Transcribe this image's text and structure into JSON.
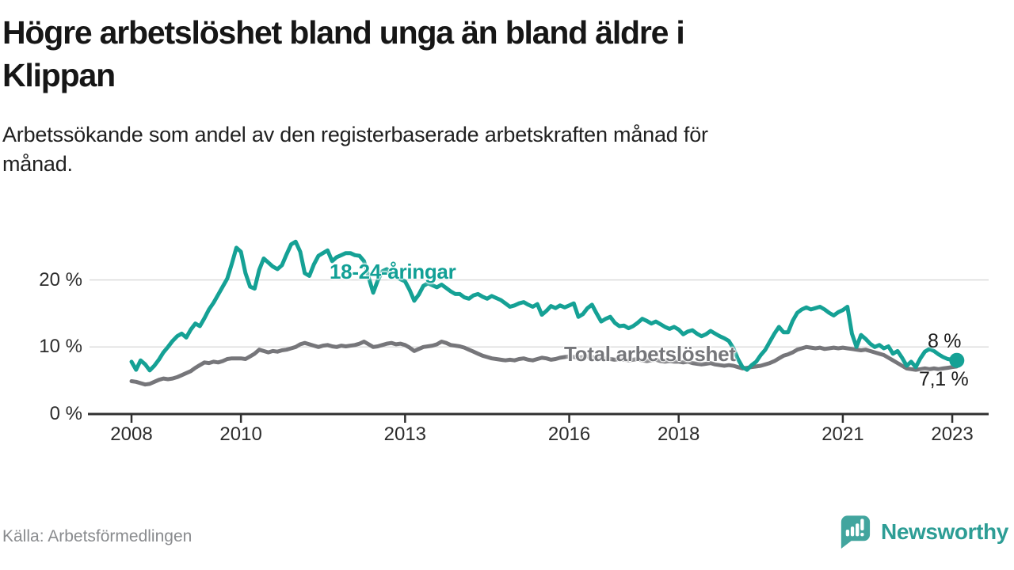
{
  "header": {
    "title": "Högre arbetslöshet bland unga än bland äldre i\nKlippan",
    "subtitle": "Arbetssökande som andel av den registerbaserade arbetskraften månad för\nmånad."
  },
  "chart_data": {
    "type": "line",
    "title": "Högre arbetslöshet bland unga än bland äldre i Klippan",
    "subtitle": "Arbetssökande som andel av den registerbaserade arbetskraften månad för månad.",
    "unit": "%",
    "grid": "horizontal",
    "legend": "inline-annotations",
    "x_axis": {
      "start": "2008-01",
      "interval": "month",
      "ticks": [
        {
          "year": 2008,
          "label": "2008"
        },
        {
          "year": 2010,
          "label": "2010"
        },
        {
          "year": 2013,
          "label": "2013"
        },
        {
          "year": 2016,
          "label": "2016"
        },
        {
          "year": 2018,
          "label": "2018"
        },
        {
          "year": 2021,
          "label": "2021"
        },
        {
          "year": 2023,
          "label": "2023"
        }
      ]
    },
    "y_axis": {
      "range": [
        0,
        27
      ],
      "ticks": [
        {
          "value": 0,
          "label": "0 %"
        },
        {
          "value": 10,
          "label": "10 %"
        },
        {
          "value": 20,
          "label": "20 %"
        }
      ]
    },
    "series": [
      {
        "name": "18-24-åringar",
        "color": "#15a195",
        "end_label": "8 %",
        "end_dot": true,
        "values": [
          7.8,
          6.6,
          8.0,
          7.4,
          6.5,
          7.2,
          8.1,
          9.2,
          10.0,
          10.9,
          11.6,
          12.0,
          11.4,
          12.6,
          13.5,
          13.1,
          14.3,
          15.6,
          16.6,
          17.8,
          19.0,
          20.2,
          22.4,
          24.8,
          24.2,
          21.0,
          19.0,
          18.7,
          21.5,
          23.2,
          22.6,
          22.0,
          21.6,
          22.2,
          23.8,
          25.3,
          25.7,
          24.2,
          21.0,
          20.6,
          22.3,
          23.6,
          24.0,
          24.4,
          22.8,
          23.4,
          23.7,
          24.0,
          24.0,
          23.7,
          23.6,
          22.8,
          20.4,
          18.1,
          19.9,
          21.3,
          21.6,
          21.0,
          20.5,
          20.1,
          19.8,
          18.5,
          16.9,
          17.8,
          19.1,
          19.5,
          19.2,
          18.9,
          19.3,
          18.8,
          18.3,
          17.9,
          17.9,
          17.4,
          17.2,
          17.7,
          17.9,
          17.5,
          17.2,
          17.6,
          17.3,
          17.0,
          16.5,
          16.0,
          16.2,
          16.5,
          16.7,
          16.3,
          16.0,
          16.4,
          14.8,
          15.4,
          16.1,
          15.8,
          16.2,
          15.9,
          16.2,
          16.5,
          14.5,
          14.9,
          15.8,
          16.3,
          15.0,
          13.8,
          14.2,
          14.5,
          13.6,
          13.1,
          13.2,
          12.8,
          13.1,
          13.6,
          14.2,
          13.9,
          13.5,
          13.8,
          13.4,
          13.0,
          12.7,
          13.0,
          12.6,
          11.9,
          12.3,
          12.5,
          12.0,
          11.6,
          11.9,
          12.4,
          12.0,
          11.6,
          11.3,
          10.9,
          9.8,
          8.2,
          7.0,
          6.6,
          7.3,
          7.8,
          8.8,
          9.6,
          10.8,
          12.0,
          13.0,
          12.2,
          12.2,
          13.9,
          15.1,
          15.6,
          15.9,
          15.6,
          15.8,
          16.0,
          15.6,
          15.1,
          14.7,
          15.2,
          15.5,
          16.0,
          12.0,
          10.0,
          11.8,
          11.2,
          10.5,
          10.0,
          10.3,
          9.8,
          10.1,
          9.0,
          9.4,
          8.4,
          7.2,
          7.8,
          7.0,
          8.3,
          9.3,
          9.7,
          9.4,
          8.9,
          8.5,
          8.2,
          8.1,
          8.0
        ]
      },
      {
        "name": "Total arbetslöshet",
        "color": "#76767a",
        "end_label": "7,1 %",
        "end_dot": false,
        "values": [
          4.9,
          4.8,
          4.6,
          4.4,
          4.5,
          4.8,
          5.1,
          5.3,
          5.2,
          5.3,
          5.5,
          5.8,
          6.1,
          6.4,
          6.9,
          7.3,
          7.7,
          7.6,
          7.8,
          7.7,
          7.9,
          8.2,
          8.3,
          8.3,
          8.3,
          8.2,
          8.6,
          9.0,
          9.6,
          9.4,
          9.2,
          9.4,
          9.3,
          9.5,
          9.6,
          9.8,
          10.0,
          10.4,
          10.6,
          10.4,
          10.2,
          10.0,
          10.2,
          10.3,
          10.1,
          10.0,
          10.2,
          10.1,
          10.2,
          10.3,
          10.5,
          10.8,
          10.4,
          10.0,
          10.1,
          10.3,
          10.5,
          10.6,
          10.4,
          10.5,
          10.3,
          9.9,
          9.4,
          9.7,
          10.0,
          10.1,
          10.2,
          10.4,
          10.8,
          10.6,
          10.3,
          10.2,
          10.1,
          9.9,
          9.6,
          9.3,
          9.0,
          8.7,
          8.5,
          8.3,
          8.2,
          8.1,
          8.0,
          8.1,
          8.0,
          8.2,
          8.3,
          8.1,
          8.0,
          8.2,
          8.4,
          8.3,
          8.1,
          8.2,
          8.4,
          8.5,
          8.6,
          8.5,
          8.4,
          8.5,
          8.6,
          8.5,
          8.3,
          8.2,
          8.3,
          8.2,
          8.1,
          8.2,
          8.1,
          8.0,
          8.1,
          8.2,
          8.0,
          7.9,
          8.0,
          8.1,
          7.9,
          7.8,
          7.9,
          7.8,
          7.8,
          7.7,
          7.8,
          7.6,
          7.5,
          7.4,
          7.5,
          7.6,
          7.4,
          7.3,
          7.2,
          7.3,
          7.2,
          7.0,
          6.8,
          6.9,
          7.0,
          7.1,
          7.2,
          7.4,
          7.6,
          7.9,
          8.3,
          8.7,
          8.9,
          9.2,
          9.6,
          9.8,
          10.0,
          9.9,
          9.8,
          9.9,
          9.7,
          9.8,
          9.9,
          9.8,
          9.9,
          9.8,
          9.7,
          9.6,
          9.5,
          9.6,
          9.4,
          9.2,
          9.0,
          8.8,
          8.4,
          8.0,
          7.6,
          7.2,
          6.8,
          6.7,
          6.6,
          6.7,
          6.8,
          6.7,
          6.8,
          6.7,
          6.8,
          6.9,
          7.0,
          7.1
        ]
      }
    ],
    "colors": {
      "grid": "#dcdcdc",
      "axis": "#303030",
      "tick_label": "#2c2c2c",
      "end_label": "#1d1d1d"
    }
  },
  "footer": {
    "source": "Källa: Arbetsförmedlingen",
    "brand": "Newsworthy",
    "brand_color": "#2d9d95",
    "logo_color": "#42a59e"
  }
}
